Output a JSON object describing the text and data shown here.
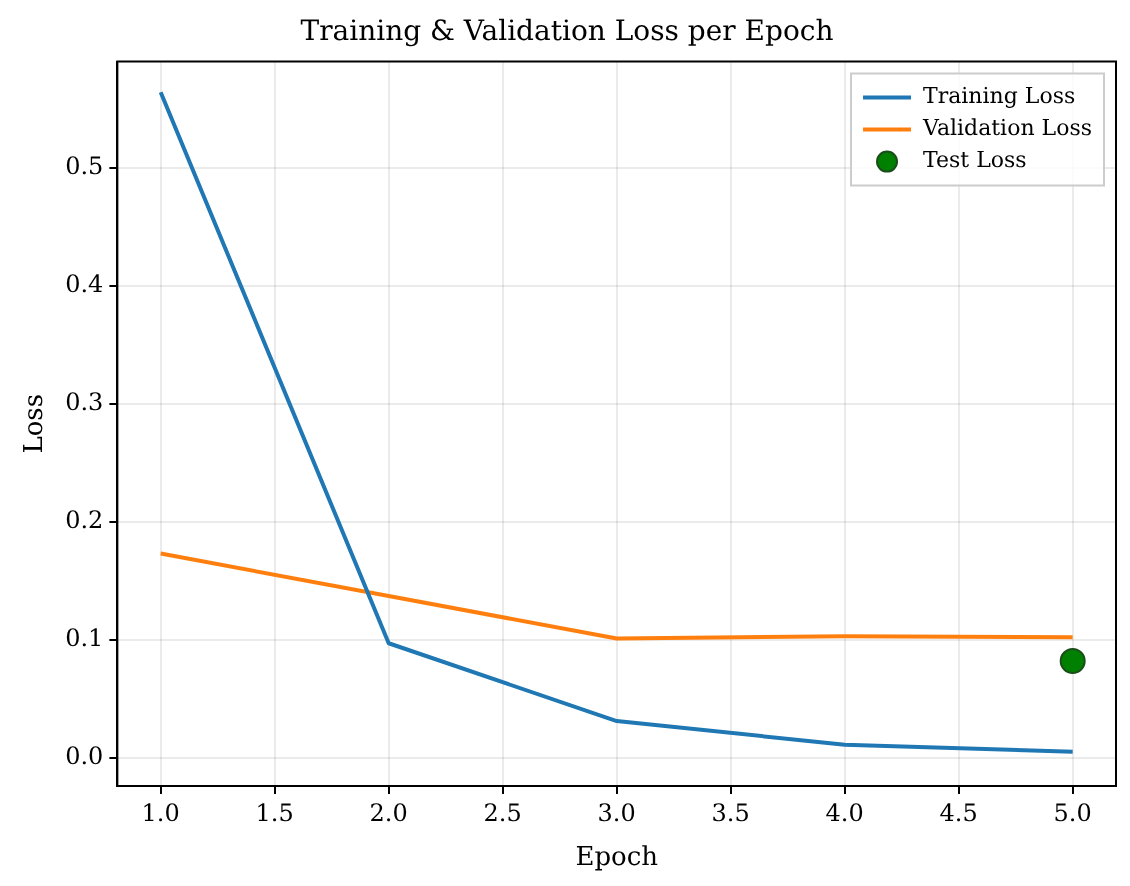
{
  "chart_data": {
    "type": "line",
    "title": "Training & Validation Loss per Epoch",
    "xlabel": "Epoch",
    "ylabel": "Loss",
    "x": [
      1,
      2,
      3,
      4,
      5
    ],
    "series": [
      {
        "name": "Training Loss",
        "color": "#1f77b4",
        "values": [
          0.564,
          0.097,
          0.031,
          0.011,
          0.005
        ]
      },
      {
        "name": "Validation Loss",
        "color": "#ff7f0e",
        "values": [
          0.173,
          0.137,
          0.101,
          0.103,
          0.102
        ]
      },
      {
        "name": "Test Loss",
        "type": "scatter",
        "color": "#008000",
        "x": [
          5
        ],
        "values": [
          0.082
        ],
        "marker": "circle"
      }
    ],
    "xlim": [
      0.81,
      5.19
    ],
    "xticks": [
      {
        "value": 1,
        "label": "1.0"
      },
      {
        "value": 1.5,
        "label": "1.5"
      },
      {
        "value": 2,
        "label": "2.0"
      },
      {
        "value": 2.5,
        "label": "2.5"
      },
      {
        "value": 3,
        "label": "3.0"
      },
      {
        "value": 3.5,
        "label": "3.5"
      },
      {
        "value": 4,
        "label": "4.0"
      },
      {
        "value": 4.5,
        "label": "4.5"
      },
      {
        "value": 5,
        "label": "5.0"
      }
    ],
    "ylim": [
      -0.024,
      0.59
    ],
    "yticks": [
      {
        "value": 0,
        "label": "0.0"
      },
      {
        "value": 0.1,
        "label": "0.1"
      },
      {
        "value": 0.2,
        "label": "0.2"
      },
      {
        "value": 0.3,
        "label": "0.3"
      },
      {
        "value": 0.4,
        "label": "0.4"
      },
      {
        "value": 0.5,
        "label": "0.5"
      }
    ],
    "grid": true,
    "legend": "top right"
  }
}
